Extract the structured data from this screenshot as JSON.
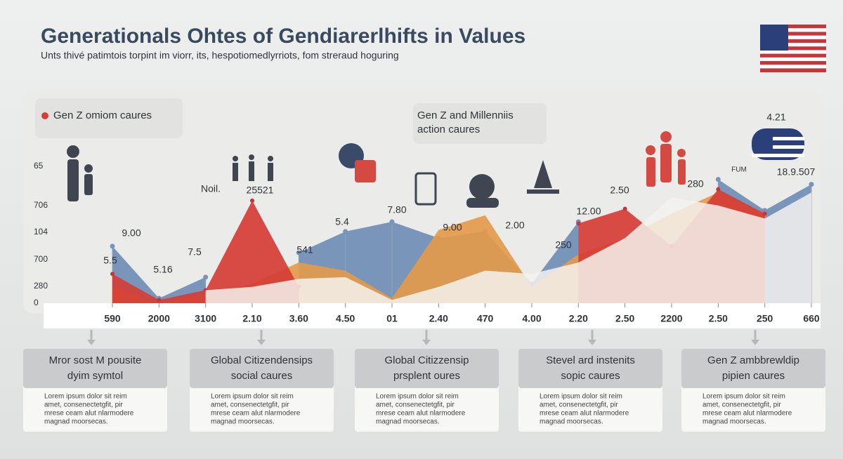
{
  "header": {
    "title": "Generationals Ohtes of Gendiarerlhifts in Values",
    "subtitle": "Unts thivé patimtois torpint im viorr, its, hespotiomedlyrriots, fom streraud hoguring"
  },
  "chart_data": {
    "type": "area",
    "categories": [
      "590",
      "2000",
      "3100",
      "2.10",
      "3.60",
      "4.50",
      "01",
      "2.40",
      "470",
      "4.00",
      "2.20",
      "2.50",
      "2200",
      "2.50",
      "250",
      "660"
    ],
    "y_axis_labels": [
      "65",
      "706",
      "104",
      "700",
      "280",
      "0"
    ],
    "series": [
      {
        "name": "Gen Z and Millenniis action caures",
        "color": "#6f8db5",
        "values": [
          35,
          3,
          16,
          null,
          31,
          44,
          50,
          40,
          44,
          12,
          50,
          null,
          null,
          76,
          57,
          73
        ]
      },
      {
        "color": "#e39a4a",
        "values": [
          10,
          0,
          5,
          12,
          25,
          20,
          3,
          45,
          54,
          10,
          30,
          40,
          55,
          68,
          55,
          null
        ]
      },
      {
        "name": "Gen Z omiom caures",
        "color": "#d63d36",
        "values": [
          18,
          2,
          8,
          63,
          10,
          null,
          null,
          null,
          null,
          null,
          49,
          58,
          35,
          70,
          55,
          null
        ]
      },
      {
        "color": "#f4f2ee",
        "values": [
          5,
          null,
          8,
          10,
          15,
          16,
          2,
          10,
          20,
          18,
          25,
          40,
          65,
          60,
          52,
          68
        ]
      }
    ],
    "annotations": [
      "5.5",
      "9.00",
      "5.16",
      "7.5",
      "Noil.",
      "25521",
      "541",
      "5.4",
      "7.80",
      "9.00",
      "2.00",
      "250",
      "12.00",
      "2.50",
      "280",
      "4.21",
      "18.9.507",
      "FUM"
    ]
  },
  "cards": [
    {
      "title": [
        "Mror sost M pousite",
        "dyim symtol"
      ],
      "body": [
        "Lorem ipsum dolor sit reim",
        "amet, consenectetgfit, pir",
        "mrese ceam alut nlarmodere",
        "magnad moorsecas."
      ]
    },
    {
      "title": [
        "Global Citizendensips",
        "social caures"
      ],
      "body": [
        "Lorem ipsum dolor sit reim",
        "amet, consenectetgfit, pir",
        "mrese ceam alut nlarmodere",
        "magnad moorsecas."
      ]
    },
    {
      "title": [
        "Global Citizzensip",
        "prsplent oures"
      ],
      "body": [
        "Lorem ipsum dolor sit reim",
        "amet, consenectetgfit, pir",
        "mrese ceam alut nlarmodere",
        "magnad moorsecas."
      ]
    },
    {
      "title": [
        "Stevel ard instenits",
        "sopic caures"
      ],
      "body": [
        "Lorem ipsum dolor sit reim",
        "amet, consenectetgfit, pir",
        "mrese ceam alut nlarmodere",
        "magnad moorsecas."
      ]
    },
    {
      "title": [
        "Gen Z ambbrewldip",
        "pipien caures"
      ],
      "body": [
        "Lorem ipsum dolor sit reim",
        "amet, consenectetgfit, pir",
        "mrese ceam alut nlarmodere",
        "magnad moorsecas."
      ]
    }
  ]
}
